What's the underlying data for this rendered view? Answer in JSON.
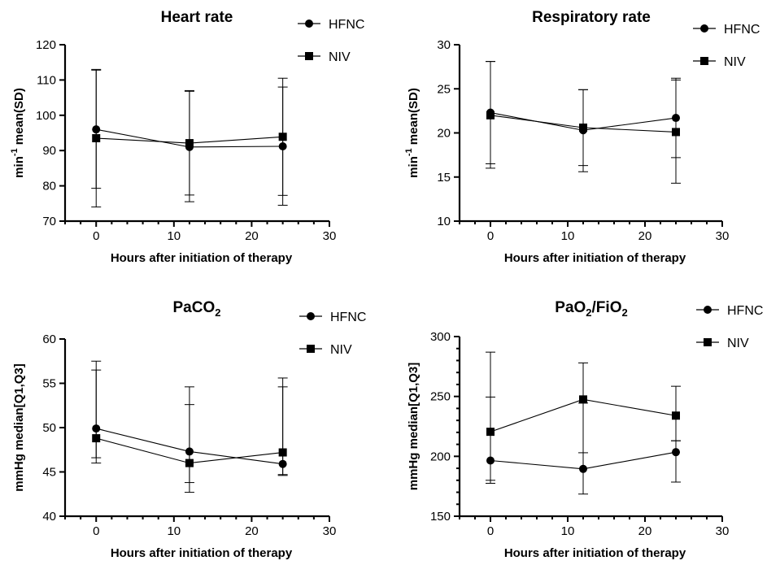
{
  "chart_data": [
    {
      "type": "line",
      "title": "Heart rate",
      "title_sub": "",
      "title_suffix": "",
      "ylabel_main": "min",
      "ylabel_sup": "-1",
      "ylabel_rest": " mean(SD)",
      "xlabel": "Hours after initiation of therapy",
      "xlim": [
        -4,
        30
      ],
      "ylim": [
        70,
        120
      ],
      "xticks": [
        0,
        10,
        20,
        30
      ],
      "yticks": [
        70,
        80,
        90,
        100,
        110,
        120
      ],
      "y_minor": 0,
      "series": [
        {
          "name": "HFNC",
          "marker": "circle",
          "x": [
            0,
            12,
            24
          ],
          "y": [
            96,
            91,
            91.2
          ],
          "err_low": [
            74,
            75.5,
            74.5
          ],
          "err_high": [
            112.8,
            106.8,
            108
          ]
        },
        {
          "name": "NIV",
          "marker": "square",
          "x": [
            0,
            12,
            24
          ],
          "y": [
            93.5,
            92.1,
            93.9
          ],
          "err_low": [
            79.3,
            77.4,
            77.3
          ],
          "err_high": [
            113,
            107,
            110.5
          ]
        }
      ]
    },
    {
      "type": "line",
      "title": "Respiratory rate",
      "title_sub": "",
      "title_suffix": "",
      "ylabel_main": "min",
      "ylabel_sup": "-1",
      "ylabel_rest": " mean(SD)",
      "xlabel": "Hours after initiation of therapy",
      "xlim": [
        -4,
        30
      ],
      "ylim": [
        10,
        30
      ],
      "xticks": [
        0,
        10,
        20,
        30
      ],
      "yticks": [
        10,
        15,
        20,
        25,
        30
      ],
      "y_minor": 0,
      "series": [
        {
          "name": "HFNC",
          "marker": "circle",
          "x": [
            0,
            12,
            24
          ],
          "y": [
            22.3,
            20.3,
            21.7
          ],
          "err_low": [
            16.5,
            15.6,
            17.2
          ],
          "err_high": [
            28.1,
            24.9,
            26.2
          ]
        },
        {
          "name": "NIV",
          "marker": "square",
          "x": [
            0,
            12,
            24
          ],
          "y": [
            22,
            20.6,
            20.1
          ],
          "err_low": [
            16,
            16.3,
            14.3
          ],
          "err_high": [
            28.1,
            24.9,
            26
          ]
        }
      ]
    },
    {
      "type": "line",
      "title": "PaCO",
      "title_sub": "2",
      "title_suffix": "",
      "ylabel_main": "mmHg median[Q1,Q3]",
      "ylabel_sup": "",
      "ylabel_rest": "",
      "xlabel": "Hours after initiation of therapy",
      "xlim": [
        -4,
        30
      ],
      "ylim": [
        40,
        60
      ],
      "xticks": [
        0,
        10,
        20,
        30
      ],
      "yticks": [
        40,
        45,
        50,
        55,
        60
      ],
      "y_minor": 0,
      "series": [
        {
          "name": "HFNC",
          "marker": "circle",
          "x": [
            0,
            12,
            24
          ],
          "y": [
            49.9,
            47.3,
            45.9
          ],
          "err_low": [
            46,
            42.7,
            44.7
          ],
          "err_high": [
            56.5,
            52.6,
            54.6
          ]
        },
        {
          "name": "NIV",
          "marker": "square",
          "x": [
            0,
            12,
            24
          ],
          "y": [
            48.8,
            46,
            47.2
          ],
          "err_low": [
            46.6,
            43.8,
            44.6
          ],
          "err_high": [
            57.5,
            54.6,
            55.6
          ]
        }
      ]
    },
    {
      "type": "line",
      "title": "PaO",
      "title_sub": "2",
      "title_suffix": "/FiO",
      "title_sub2": "2",
      "ylabel_main": "mmHg median[Q1,Q3]",
      "ylabel_sup": "",
      "ylabel_rest": "",
      "xlabel": "Hours after initiation of therapy",
      "xlim": [
        -4,
        30
      ],
      "ylim": [
        150,
        300
      ],
      "xticks": [
        0,
        10,
        20,
        30
      ],
      "yticks": [
        150,
        200,
        250,
        300
      ],
      "y_minor": 10,
      "series": [
        {
          "name": "HFNC",
          "marker": "circle",
          "x": [
            0,
            12,
            24
          ],
          "y": [
            196.5,
            189.5,
            203.5
          ],
          "err_low": [
            180,
            168.5,
            178.5
          ],
          "err_high": [
            249.5,
            244.5,
            213
          ]
        },
        {
          "name": "NIV",
          "marker": "square",
          "x": [
            0,
            12,
            24
          ],
          "y": [
            220.5,
            247.5,
            234
          ],
          "err_low": [
            177.5,
            203,
            213
          ],
          "err_high": [
            287,
            278,
            258.5
          ]
        }
      ]
    }
  ]
}
